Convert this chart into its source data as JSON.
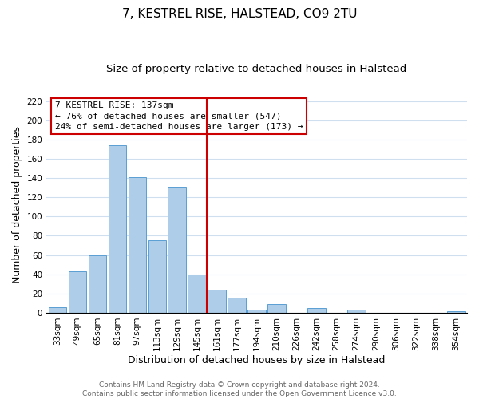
{
  "title": "7, KESTREL RISE, HALSTEAD, CO9 2TU",
  "subtitle": "Size of property relative to detached houses in Halstead",
  "xlabel": "Distribution of detached houses by size in Halstead",
  "ylabel": "Number of detached properties",
  "bar_labels": [
    "33sqm",
    "49sqm",
    "65sqm",
    "81sqm",
    "97sqm",
    "113sqm",
    "129sqm",
    "145sqm",
    "161sqm",
    "177sqm",
    "194sqm",
    "210sqm",
    "226sqm",
    "242sqm",
    "258sqm",
    "274sqm",
    "290sqm",
    "306sqm",
    "322sqm",
    "338sqm",
    "354sqm"
  ],
  "bar_values": [
    6,
    43,
    60,
    174,
    141,
    75,
    131,
    40,
    24,
    16,
    3,
    9,
    0,
    5,
    0,
    3,
    0,
    0,
    0,
    0,
    2
  ],
  "bar_color": "#aecde8",
  "bar_edge_color": "#5a9fd4",
  "vline_color": "#cc0000",
  "ylim": [
    0,
    225
  ],
  "yticks": [
    0,
    20,
    40,
    60,
    80,
    100,
    120,
    140,
    160,
    180,
    200,
    220
  ],
  "annotation_box_text_line1": "7 KESTREL RISE: 137sqm",
  "annotation_box_text_line2": "← 76% of detached houses are smaller (547)",
  "annotation_box_text_line3": "24% of semi-detached houses are larger (173) →",
  "annotation_box_edge_color": "#cc0000",
  "annotation_box_facecolor": "#ffffff",
  "footer_line1": "Contains HM Land Registry data © Crown copyright and database right 2024.",
  "footer_line2": "Contains public sector information licensed under the Open Government Licence v3.0.",
  "background_color": "#ffffff",
  "grid_color": "#d0dff0",
  "title_fontsize": 11,
  "subtitle_fontsize": 9.5,
  "axis_label_fontsize": 9,
  "tick_fontsize": 7.5,
  "footer_fontsize": 6.5,
  "annot_fontsize": 8
}
